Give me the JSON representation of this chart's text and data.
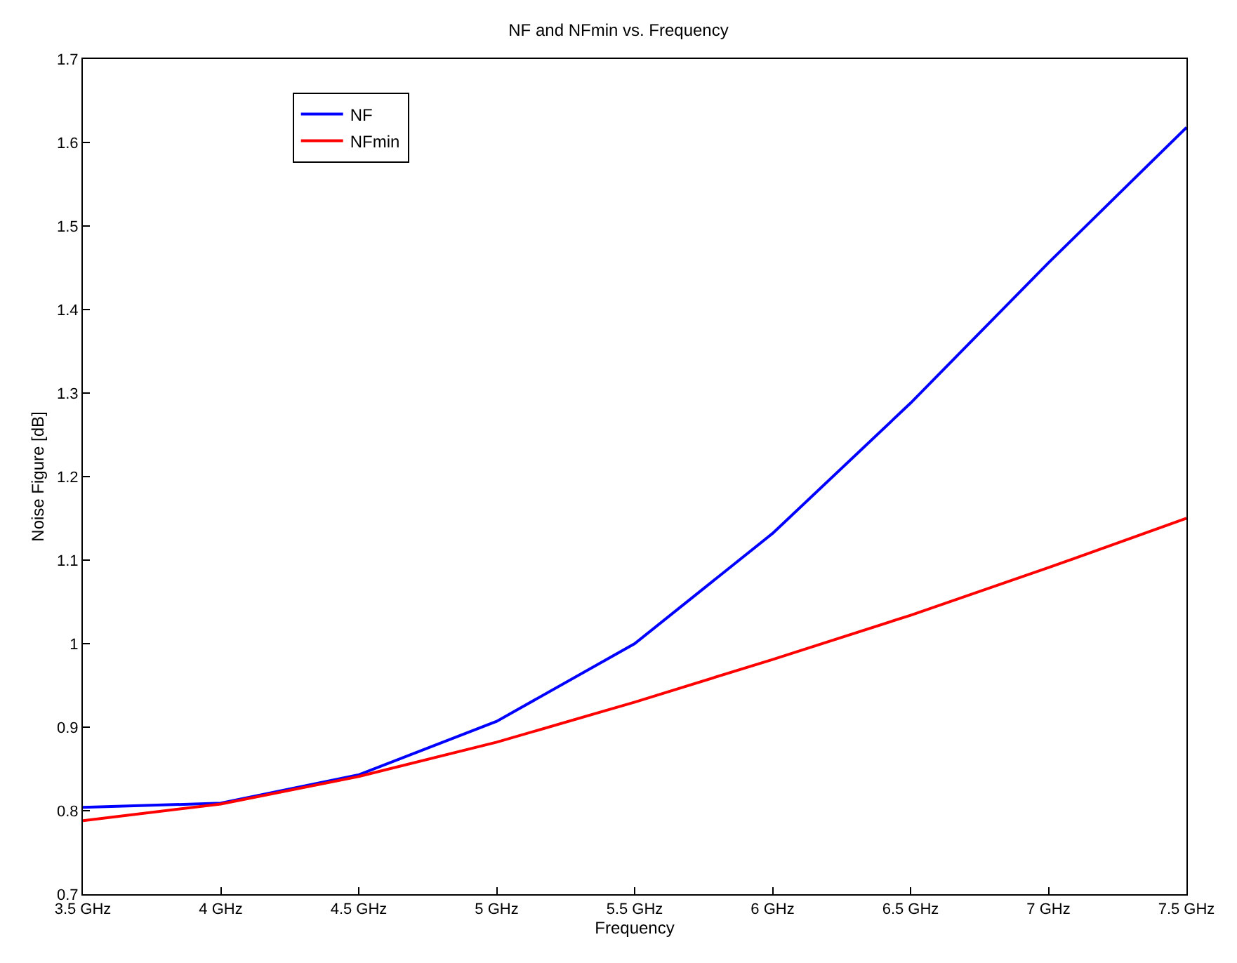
{
  "chart_data": {
    "type": "line",
    "title": "NF and NFmin vs. Frequency",
    "xlabel": "Frequency",
    "ylabel": "Noise Figure [dB]",
    "x": [
      3.5,
      4,
      4.5,
      5,
      5.5,
      6,
      6.5,
      7,
      7.5
    ],
    "series": [
      {
        "name": "NF",
        "color": "#0000ff",
        "values": [
          0.804,
          0.809,
          0.843,
          0.907,
          1.0,
          1.132,
          1.288,
          1.456,
          1.618
        ]
      },
      {
        "name": "NFmin",
        "color": "#ff0000",
        "values": [
          0.788,
          0.808,
          0.841,
          0.882,
          0.93,
          0.981,
          1.034,
          1.091,
          1.15
        ]
      }
    ],
    "xlim": [
      3.5,
      7.5
    ],
    "xticks": [
      {
        "value": 3.5,
        "label": "3.5 GHz"
      },
      {
        "value": 4,
        "label": "4 GHz"
      },
      {
        "value": 4.5,
        "label": "4.5 GHz"
      },
      {
        "value": 5,
        "label": "5 GHz"
      },
      {
        "value": 5.5,
        "label": "5.5 GHz"
      },
      {
        "value": 6,
        "label": "6 GHz"
      },
      {
        "value": 6.5,
        "label": "6.5 GHz"
      },
      {
        "value": 7,
        "label": "7 GHz"
      },
      {
        "value": 7.5,
        "label": "7.5 GHz"
      }
    ],
    "ylim": [
      0.7,
      1.7
    ],
    "yticks": [
      0.7,
      0.8,
      0.9,
      1,
      1.1,
      1.2,
      1.3,
      1.4,
      1.5,
      1.6,
      1.7
    ],
    "grid": false,
    "legend": "top left",
    "marker": "none",
    "line_style": "solid"
  }
}
